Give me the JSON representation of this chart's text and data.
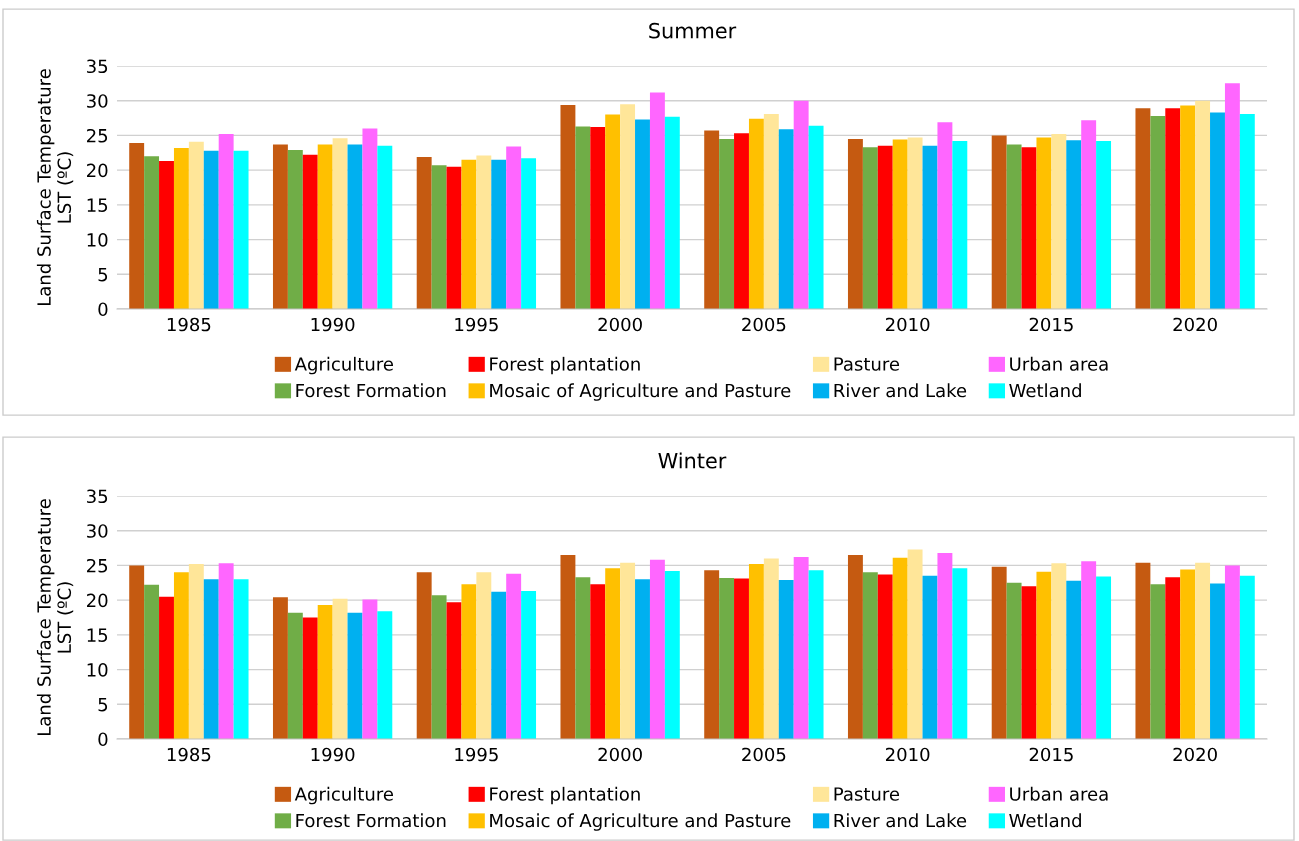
{
  "chart_data": [
    {
      "type": "bar",
      "title": "Summer",
      "ylabel": "Land Surface Temperature\nLST (ºC)",
      "categories": [
        "1985",
        "1990",
        "1995",
        "2000",
        "2005",
        "2010",
        "2015",
        "2020"
      ],
      "ylim": [
        0,
        35
      ],
      "yticks": [
        0,
        5,
        10,
        15,
        20,
        25,
        30,
        35
      ],
      "grid": "y",
      "legend": "bottom",
      "series": [
        {
          "name": "Agriculture",
          "color": "#c55a11",
          "values": [
            23.9,
            23.7,
            21.9,
            29.4,
            25.7,
            24.5,
            25.0,
            28.9
          ]
        },
        {
          "name": "Forest Formation",
          "color": "#70ad47",
          "values": [
            22.0,
            22.9,
            20.7,
            26.3,
            24.5,
            23.3,
            23.7,
            27.8
          ]
        },
        {
          "name": "Forest plantation",
          "color": "#ff0000",
          "values": [
            21.3,
            22.2,
            20.5,
            26.2,
            25.3,
            23.5,
            23.3,
            28.9
          ]
        },
        {
          "name": "Mosaic of Agriculture and Pasture",
          "color": "#ffc000",
          "values": [
            23.2,
            23.7,
            21.5,
            28.0,
            27.4,
            24.4,
            24.7,
            29.3
          ]
        },
        {
          "name": "Pasture",
          "color": "#ffe699",
          "values": [
            24.1,
            24.6,
            22.1,
            29.5,
            28.1,
            24.7,
            25.2,
            30.0
          ]
        },
        {
          "name": "River and Lake",
          "color": "#00b0f0",
          "values": [
            22.8,
            23.7,
            21.5,
            27.3,
            25.9,
            23.5,
            24.3,
            28.3
          ]
        },
        {
          "name": "Urban area",
          "color": "#ff66ff",
          "values": [
            25.2,
            26.0,
            23.4,
            31.2,
            30.0,
            26.9,
            27.2,
            32.5
          ]
        },
        {
          "name": "Wetland",
          "color": "#00ffff",
          "values": [
            22.8,
            23.5,
            21.7,
            27.7,
            26.4,
            24.2,
            24.2,
            28.1
          ]
        }
      ]
    },
    {
      "type": "bar",
      "title": "Winter",
      "ylabel": "Land Surface Temperature\nLST (ºC)",
      "categories": [
        "1985",
        "1990",
        "1995",
        "2000",
        "2005",
        "2010",
        "2015",
        "2020"
      ],
      "ylim": [
        0,
        35
      ],
      "yticks": [
        0,
        5,
        10,
        15,
        20,
        25,
        30,
        35
      ],
      "grid": "y",
      "legend": "bottom",
      "series": [
        {
          "name": "Agriculture",
          "color": "#c55a11",
          "values": [
            25.0,
            20.4,
            24.0,
            26.5,
            24.3,
            26.5,
            24.8,
            25.4
          ]
        },
        {
          "name": "Forest Formation",
          "color": "#70ad47",
          "values": [
            22.2,
            18.2,
            20.7,
            23.3,
            23.2,
            24.0,
            22.5,
            22.3
          ]
        },
        {
          "name": "Forest plantation",
          "color": "#ff0000",
          "values": [
            20.5,
            17.5,
            19.7,
            22.3,
            23.1,
            23.7,
            22.0,
            23.3
          ]
        },
        {
          "name": "Mosaic of Agriculture and Pasture",
          "color": "#ffc000",
          "values": [
            24.0,
            19.3,
            22.3,
            24.6,
            25.2,
            26.1,
            24.1,
            24.4
          ]
        },
        {
          "name": "Pasture",
          "color": "#ffe699",
          "values": [
            25.2,
            20.2,
            24.0,
            25.4,
            26.0,
            27.3,
            25.3,
            25.4
          ]
        },
        {
          "name": "River and Lake",
          "color": "#00b0f0",
          "values": [
            23.0,
            18.2,
            21.2,
            23.0,
            22.9,
            23.5,
            22.8,
            22.4
          ]
        },
        {
          "name": "Urban area",
          "color": "#ff66ff",
          "values": [
            25.3,
            20.1,
            23.8,
            25.8,
            26.2,
            26.8,
            25.6,
            25.0
          ]
        },
        {
          "name": "Wetland",
          "color": "#00ffff",
          "values": [
            23.0,
            18.4,
            21.3,
            24.2,
            24.3,
            24.6,
            23.4,
            23.5
          ]
        }
      ]
    }
  ]
}
